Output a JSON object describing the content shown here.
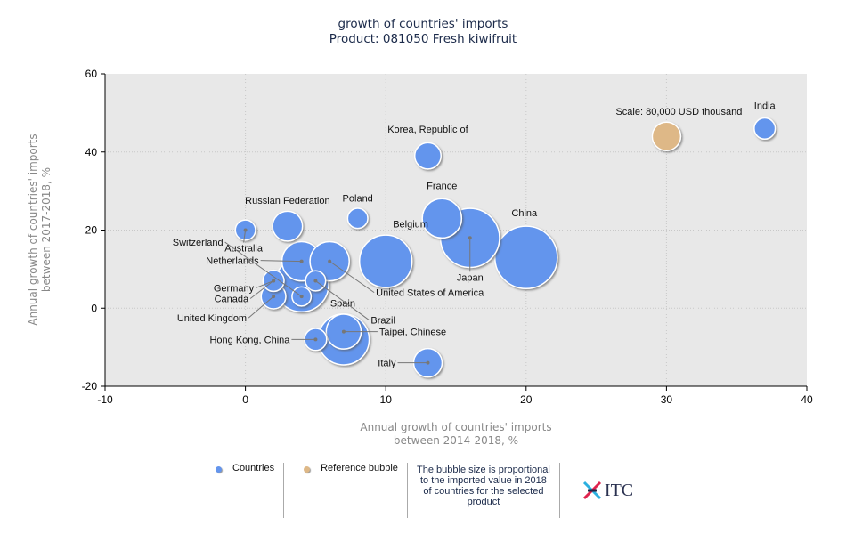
{
  "title": "growth of countries' imports",
  "subtitle": "Product: 081050 Fresh kiwifruit",
  "chart_data": {
    "type": "scatter",
    "subtype": "bubble",
    "title": "growth of countries' imports",
    "subtitle": "Product: 081050 Fresh kiwifruit",
    "xlabel": "Annual growth of countries' imports between 2014-2018, %",
    "ylabel": "Annual growth of countries' imports between 2017-2018, %",
    "xlabel_lines": [
      "Annual growth of countries' imports",
      "between 2014-2018, %"
    ],
    "ylabel_lines": [
      "Annual growth of countries' imports",
      "between 2017-2018, %"
    ],
    "xlim": [
      -10,
      40
    ],
    "ylim": [
      -20,
      60
    ],
    "xticks": [
      -10,
      0,
      10,
      20,
      30,
      40
    ],
    "yticks": [
      -20,
      0,
      20,
      40,
      60
    ],
    "grid": true,
    "colors": {
      "countries": "#6495ed",
      "reference": "#deb887",
      "plot_bg": "#e8e8e8"
    },
    "series": [
      {
        "name": "Countries",
        "points": [
          {
            "label": "India",
            "x": 37,
            "y": 46,
            "size": 0.55
          },
          {
            "label": "Korea, Republic of",
            "x": 13,
            "y": 39,
            "size": 0.85
          },
          {
            "label": "France",
            "x": 14,
            "y": 23,
            "size": 1.9
          },
          {
            "label": "Japan",
            "x": 16,
            "y": 18,
            "size": 4.3
          },
          {
            "label": "China",
            "x": 20,
            "y": 13,
            "size": 4.8
          },
          {
            "label": "Belgium",
            "x": 10,
            "y": 12,
            "size": 3.4
          },
          {
            "label": "Poland",
            "x": 8,
            "y": 23,
            "size": 0.5
          },
          {
            "label": "Russian Federation",
            "x": 3,
            "y": 21,
            "size": 1.1
          },
          {
            "label": "Australia",
            "x": 0,
            "y": 20,
            "size": 0.5
          },
          {
            "label": "Netherlands",
            "x": 4,
            "y": 12,
            "size": 1.9
          },
          {
            "label": "United States of America",
            "x": 6,
            "y": 12,
            "size": 1.9
          },
          {
            "label": "",
            "x": 4,
            "y": 6,
            "size": 3.6
          },
          {
            "label": "Germany",
            "x": 2,
            "y": 7,
            "size": 0.55
          },
          {
            "label": "United Kingdom",
            "x": 2,
            "y": 3,
            "size": 0.75
          },
          {
            "label": "Switzerland",
            "x": 4,
            "y": 3,
            "size": 0.45
          },
          {
            "label": "Brazil",
            "x": 5,
            "y": 7,
            "size": 0.5
          },
          {
            "label": "Spain",
            "x": 7,
            "y": -8,
            "size": 3.2
          },
          {
            "label": "Taipei, Chinese",
            "x": 7,
            "y": -6,
            "size": 1.5
          },
          {
            "label": "Hong Kong, China",
            "x": 5,
            "y": -8,
            "size": 0.6
          },
          {
            "label": "Italy",
            "x": 13,
            "y": -14,
            "size": 1.0
          },
          {
            "label": "Canada",
            "x": 2,
            "y": 7,
            "size": 0
          }
        ]
      },
      {
        "name": "Reference bubble",
        "points": [
          {
            "label": "Scale: 80,000 USD thousand",
            "x": 30,
            "y": 44,
            "size": 1.0
          }
        ]
      }
    ],
    "legend": [
      "Countries",
      "Reference bubble"
    ],
    "legend_position": "bottom"
  },
  "legend": {
    "countries": "Countries",
    "reference": "Reference bubble",
    "note": "The bubble size is proportional to the imported value in 2018 of countries for the selected product",
    "logo_text": "ITC"
  }
}
